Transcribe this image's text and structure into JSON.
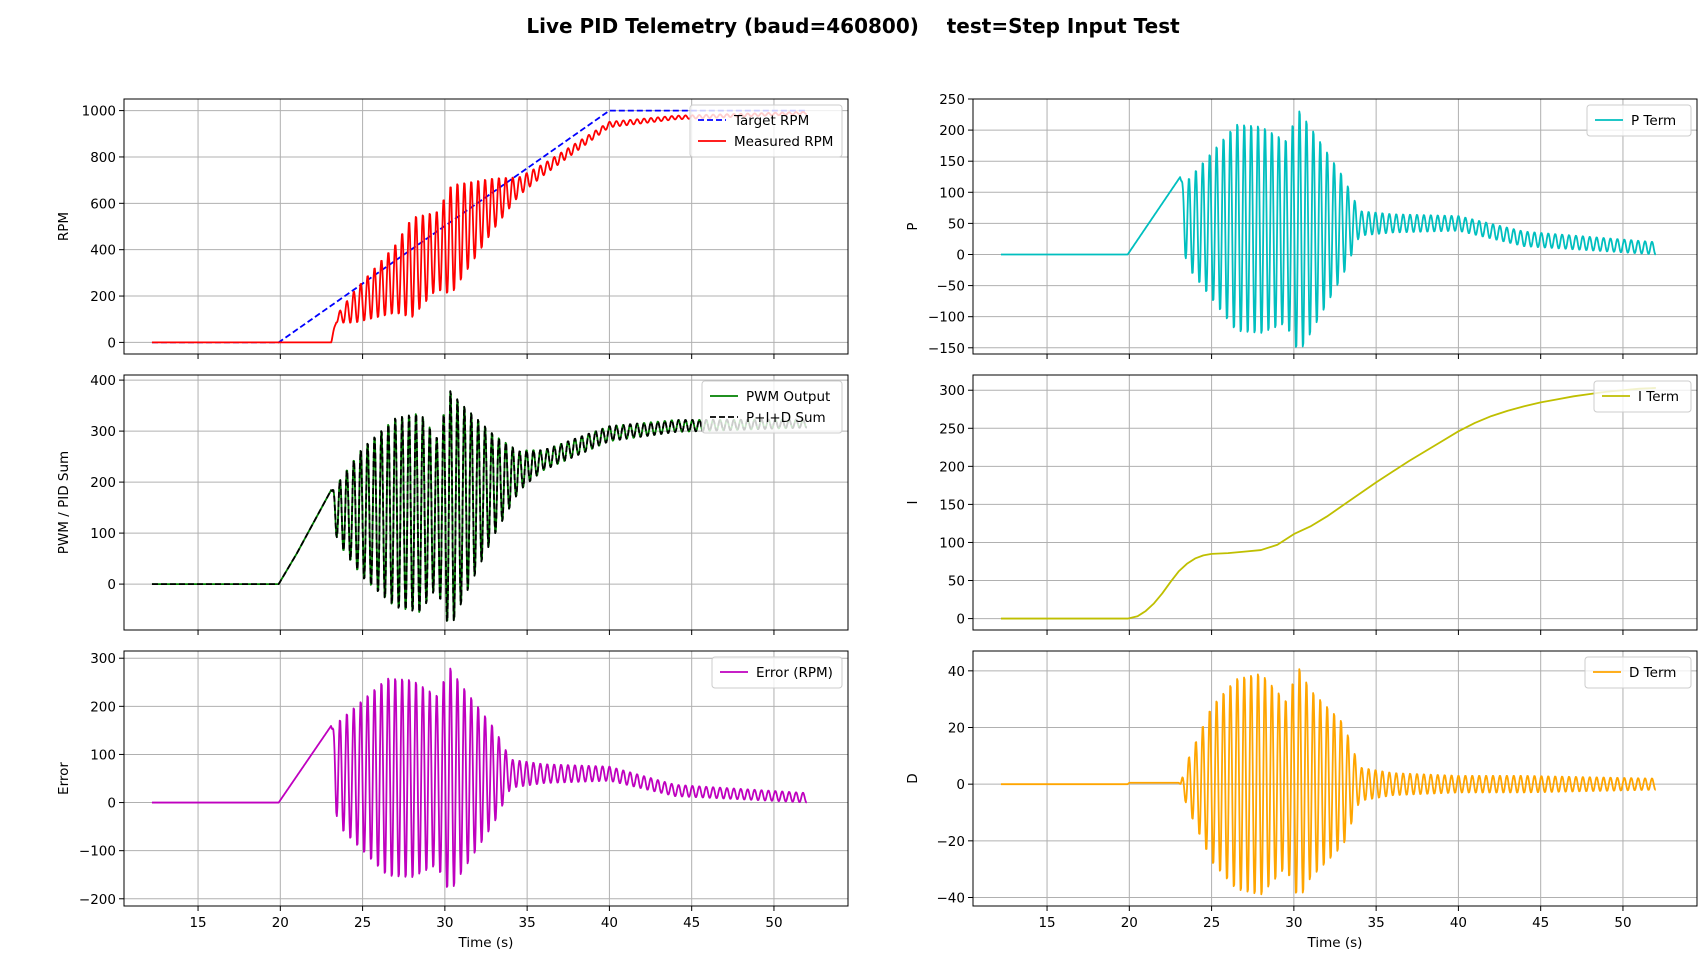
{
  "figure": {
    "title": "Live PID Telemetry (baud=460800)    test=Step Input Test"
  },
  "chart_data": [
    {
      "id": "rpm",
      "type": "line",
      "xlabel": "",
      "ylabel": "RPM",
      "xlim": [
        10.5,
        54.5
      ],
      "ylim": [
        -50,
        1050
      ],
      "xticks": [
        15,
        20,
        25,
        30,
        35,
        40,
        45,
        50
      ],
      "xticklabels_shown": false,
      "yticks": [
        0,
        200,
        400,
        600,
        800,
        1000
      ],
      "grid": true,
      "legend": "upper right",
      "series": [
        {
          "name": "Target RPM",
          "color": "#0000ff",
          "style": "dashed",
          "x": [
            12.2,
            19.9,
            40,
            52
          ],
          "y": [
            0,
            0,
            1000,
            1000
          ]
        },
        {
          "name": "Measured RPM",
          "color": "#ff0000",
          "style": "solid",
          "base": {
            "x": [
              12.2,
              23.1,
              23.4,
              30,
              33,
              40,
              44,
              52
            ],
            "y": [
              0,
              0,
              100,
              420,
              600,
              940,
              970,
              990
            ]
          },
          "oscillation": {
            "period": 0.42,
            "envelope": {
              "x": [
                23.1,
                24.5,
                27,
                28,
                29.5,
                30.4,
                31,
                33,
                34.5,
                36,
                40,
                44,
                52
              ],
              "y": [
                0,
                70,
                150,
                220,
                170,
                240,
                210,
                110,
                40,
                25,
                12,
                8,
                5
              ]
            }
          }
        }
      ]
    },
    {
      "id": "p-term",
      "type": "line",
      "xlabel": "",
      "ylabel": "P",
      "xlim": [
        10.5,
        54.5
      ],
      "ylim": [
        -160,
        250
      ],
      "xticks": [
        15,
        20,
        25,
        30,
        35,
        40,
        45,
        50
      ],
      "xticklabels_shown": false,
      "yticks": [
        -150,
        -100,
        -50,
        0,
        50,
        100,
        150,
        200,
        250
      ],
      "grid": true,
      "legend": "upper right",
      "series": [
        {
          "name": "P Term",
          "color": "#00bfbf",
          "style": "solid",
          "base": {
            "x": [
              12.2,
              19.9,
              23.1,
              23.4,
              30,
              34,
              40,
              44,
              52
            ],
            "y": [
              0,
              0,
              125,
              50,
              35,
              50,
              50,
              25,
              10
            ]
          },
          "oscillation": {
            "period": 0.42,
            "envelope": {
              "x": [
                23.1,
                23.5,
                25,
                26.5,
                28,
                29.5,
                30.3,
                31,
                33,
                34,
                36,
                40,
                44,
                52
              ],
              "y": [
                0,
                70,
                120,
                170,
                170,
                150,
                200,
                170,
                80,
                20,
                15,
                12,
                12,
                10
              ]
            }
          }
        }
      ]
    },
    {
      "id": "pwm",
      "type": "line",
      "xlabel": "",
      "ylabel": "PWM / PID Sum",
      "xlim": [
        10.5,
        54.5
      ],
      "ylim": [
        -90,
        410
      ],
      "xticks": [
        15,
        20,
        25,
        30,
        35,
        40,
        45,
        50
      ],
      "xticklabels_shown": false,
      "yticks": [
        0,
        100,
        200,
        300,
        400
      ],
      "grid": true,
      "legend": "upper right",
      "series": [
        {
          "name": "PWM Output",
          "color": "#008000",
          "style": "solid",
          "base": {
            "x": [
              12.2,
              19.9,
              21,
              23.1,
              23.4,
              30,
              35,
              40,
              44,
              52
            ],
            "y": [
              0,
              0,
              60,
              185,
              140,
              140,
              230,
              295,
              310,
              315
            ]
          },
          "oscillation": {
            "period": 0.42,
            "envelope": {
              "x": [
                23.1,
                23.5,
                25,
                27,
                28.5,
                29.5,
                30.3,
                31,
                33,
                34.5,
                36,
                40,
                44,
                52
              ],
              "y": [
                0,
                60,
                130,
                190,
                200,
                150,
                240,
                200,
                100,
                40,
                20,
                15,
                12,
                8
              ]
            }
          }
        },
        {
          "name": "P+I+D Sum",
          "color": "#000000",
          "style": "dashed",
          "base": {
            "x": [
              12.2,
              19.9,
              21,
              23.1,
              23.4,
              30,
              35,
              40,
              44,
              52
            ],
            "y": [
              0,
              0,
              60,
              185,
              140,
              140,
              230,
              295,
              310,
              315
            ]
          },
          "oscillation": {
            "period": 0.42,
            "envelope": {
              "x": [
                23.1,
                23.5,
                25,
                27,
                28.5,
                29.5,
                30.3,
                31,
                33,
                34.5,
                36,
                40,
                44,
                52
              ],
              "y": [
                0,
                60,
                130,
                190,
                200,
                150,
                240,
                200,
                100,
                40,
                20,
                15,
                12,
                8
              ]
            }
          }
        }
      ]
    },
    {
      "id": "i-term",
      "type": "line",
      "xlabel": "",
      "ylabel": "I",
      "xlim": [
        10.5,
        54.5
      ],
      "ylim": [
        -15,
        320
      ],
      "xticks": [
        15,
        20,
        25,
        30,
        35,
        40,
        45,
        50
      ],
      "xticklabels_shown": false,
      "yticks": [
        0,
        50,
        100,
        150,
        200,
        250,
        300
      ],
      "grid": true,
      "legend": "upper right",
      "series": [
        {
          "name": "I Term",
          "color": "#bfbf00",
          "style": "solid",
          "x": [
            12.2,
            19.9,
            20.5,
            21,
            21.5,
            22,
            22.5,
            23,
            23.5,
            24,
            24.5,
            25,
            26,
            27,
            28,
            29,
            30,
            31,
            32,
            33,
            34,
            35,
            36,
            37,
            38,
            39,
            40,
            41,
            42,
            43,
            44,
            45,
            46,
            47,
            48,
            49,
            50,
            51,
            52
          ],
          "y": [
            0,
            0,
            3,
            10,
            20,
            33,
            48,
            62,
            72,
            79,
            83,
            85,
            86,
            88,
            90,
            97,
            111,
            121,
            134,
            149,
            164,
            179,
            193,
            207,
            220,
            233,
            246,
            257,
            266,
            273,
            279,
            284,
            288,
            292,
            295,
            298,
            300,
            302,
            303
          ]
        }
      ]
    },
    {
      "id": "error",
      "type": "line",
      "xlabel": "Time (s)",
      "ylabel": "Error",
      "xlim": [
        10.5,
        54.5
      ],
      "ylim": [
        -215,
        315
      ],
      "xticks": [
        15,
        20,
        25,
        30,
        35,
        40,
        45,
        50
      ],
      "xticklabels_shown": true,
      "yticks": [
        -200,
        -100,
        0,
        100,
        200,
        300
      ],
      "grid": true,
      "legend": "upper right",
      "series": [
        {
          "name": "Error (RPM)",
          "color": "#bf00bf",
          "style": "solid",
          "base": {
            "x": [
              12.2,
              19.9,
              23.1,
              23.4,
              30,
              34,
              40,
              44,
              52
            ],
            "y": [
              0,
              0,
              160,
              60,
              45,
              60,
              60,
              25,
              10
            ]
          },
          "oscillation": {
            "period": 0.42,
            "envelope": {
              "x": [
                23.1,
                23.5,
                25,
                26.5,
                28,
                29.5,
                30.3,
                31,
                33,
                34,
                36,
                40,
                44,
                52
              ],
              "y": [
                0,
                110,
                160,
                210,
                210,
                180,
                240,
                200,
                100,
                30,
                20,
                15,
                12,
                10
              ]
            }
          }
        }
      ]
    },
    {
      "id": "d-term",
      "type": "line",
      "xlabel": "Time (s)",
      "ylabel": "D",
      "xlim": [
        10.5,
        54.5
      ],
      "ylim": [
        -43,
        47
      ],
      "xticks": [
        15,
        20,
        25,
        30,
        35,
        40,
        45,
        50
      ],
      "xticklabels_shown": true,
      "yticks": [
        -40,
        -20,
        0,
        20,
        40
      ],
      "grid": true,
      "legend": "upper right",
      "series": [
        {
          "name": "D Term",
          "color": "#ffa500",
          "style": "solid",
          "base": {
            "x": [
              12.2,
              19.9,
              20,
              23,
              23.1,
              52
            ],
            "y": [
              0,
              0,
              0.5,
              0.5,
              0,
              0
            ]
          },
          "oscillation": {
            "period": 0.42,
            "envelope": {
              "x": [
                23.1,
                23.5,
                25,
                26.5,
                28,
                29.5,
                30.3,
                31,
                33,
                34,
                36,
                40,
                44,
                52
              ],
              "y": [
                0,
                8,
                28,
                38,
                40,
                30,
                42,
                34,
                22,
                6,
                4,
                3,
                3,
                2
              ]
            }
          }
        }
      ]
    }
  ]
}
